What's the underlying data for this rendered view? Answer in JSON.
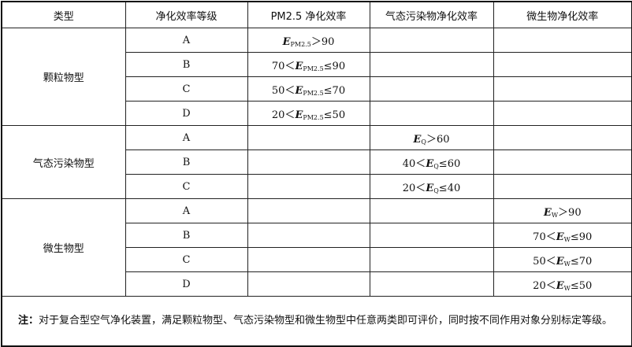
{
  "headers": [
    "类型",
    "净化效率等级",
    "PM2.5 净化效率",
    "气态污染物净化效率",
    "微生物净化效率"
  ],
  "groups": [
    {
      "type": "颗粒物型",
      "rows": [
        {
          "grade": "A",
          "pm": {
            "pre": "",
            "sub": "PM2.5",
            "post": "＞90"
          }
        },
        {
          "grade": "B",
          "pm": {
            "pre": "70＜",
            "sub": "PM2.5",
            "post": "≤90"
          }
        },
        {
          "grade": "C",
          "pm": {
            "pre": "50＜",
            "sub": "PM2.5",
            "post": "≤70"
          }
        },
        {
          "grade": "D",
          "pm": {
            "pre": "20＜",
            "sub": "PM2.5",
            "post": "≤50"
          }
        }
      ]
    },
    {
      "type": "气态污染物型",
      "rows": [
        {
          "grade": "A",
          "gas": {
            "pre": "",
            "sub": "Q",
            "post": "＞60"
          }
        },
        {
          "grade": "B",
          "gas": {
            "pre": "40＜",
            "sub": "Q",
            "post": "≤60"
          }
        },
        {
          "grade": "C",
          "gas": {
            "pre": "20＜",
            "sub": "Q",
            "post": "≤40"
          }
        }
      ]
    },
    {
      "type": "微生物型",
      "rows": [
        {
          "grade": "A",
          "mic": {
            "pre": "",
            "sub": "W",
            "post": "＞90"
          }
        },
        {
          "grade": "B",
          "mic": {
            "pre": "70＜",
            "sub": "W",
            "post": "≤90"
          }
        },
        {
          "grade": "C",
          "mic": {
            "pre": "50＜",
            "sub": "W",
            "post": "≤70"
          }
        },
        {
          "grade": "D",
          "mic": {
            "pre": "20＜",
            "sub": "W",
            "post": "≤50"
          }
        }
      ]
    }
  ],
  "symbol": "E",
  "note": {
    "label": "注：",
    "text": "对于复合型空气净化装置，满足颗粒物型、气态污染物型和微生物型中任意两类即可评价，同时按不同作用对象分别标定等级。"
  }
}
